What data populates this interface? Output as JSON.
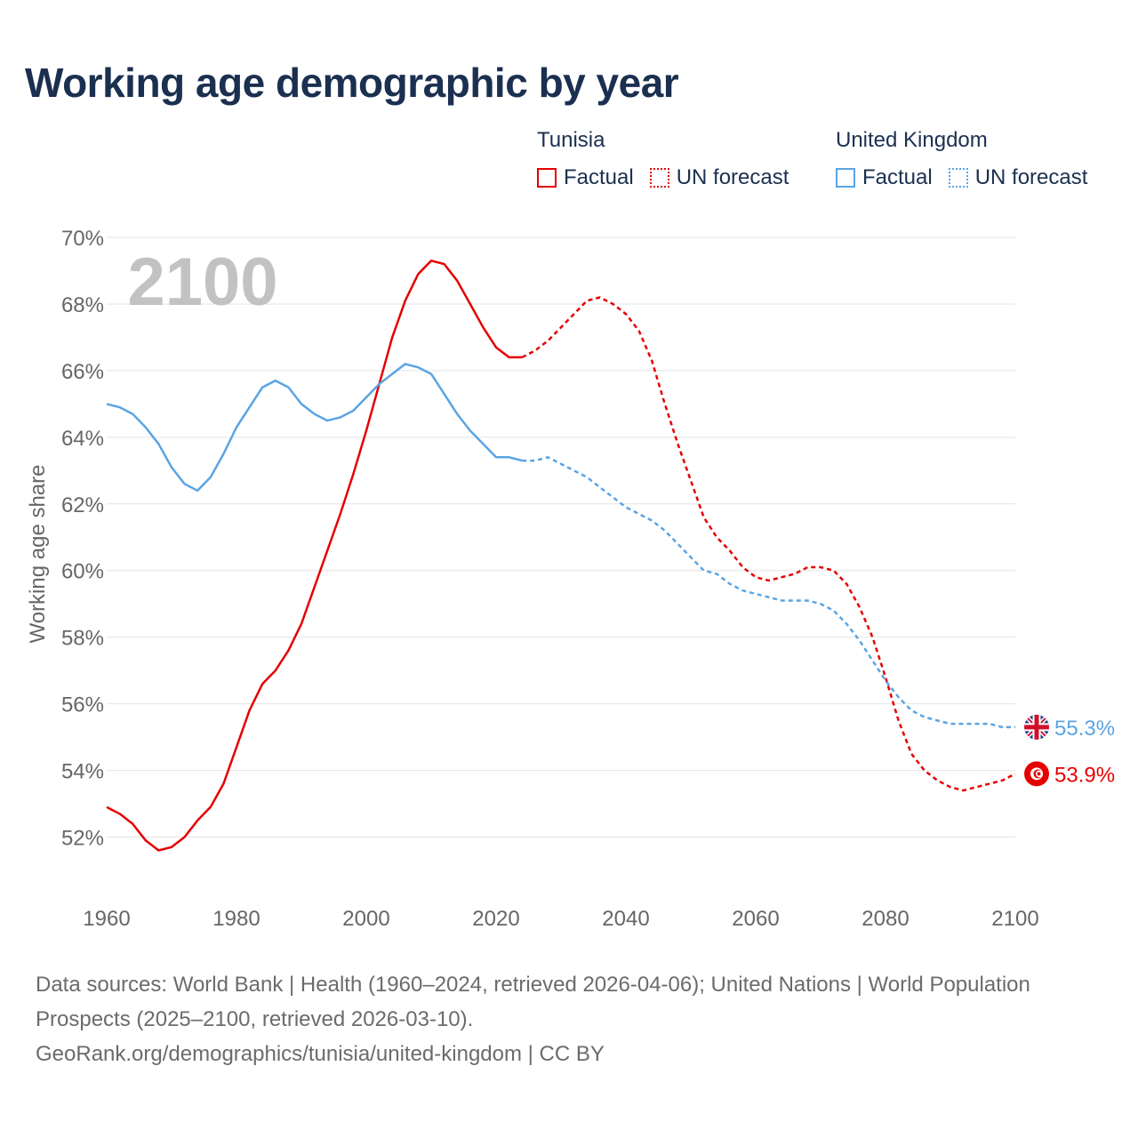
{
  "title": "Working age demographic by year",
  "legend": [
    {
      "country": "Tunisia",
      "color": "#e60000",
      "factual_label": "Factual",
      "forecast_label": "UN forecast"
    },
    {
      "country": "United Kingdom",
      "color": "#5aa4e4",
      "factual_label": "Factual",
      "forecast_label": "UN forecast"
    }
  ],
  "year_watermark": "2100",
  "footer": {
    "sources": "Data sources: World Bank | Health (1960–2024, retrieved 2026-04-06); United Nations | World Population Prospects (2025–2100, retrieved 2026-03-10).",
    "attribution": "GeoRank.org/demographics/tunisia/united-kingdom | CC BY"
  },
  "chart_data": {
    "type": "line",
    "title": "Working age demographic by year",
    "xlabel": "",
    "ylabel": "Working age share",
    "xlim": [
      1960,
      2100
    ],
    "ylim": [
      50.2,
      70
    ],
    "x_ticks": [
      "1960",
      "1980",
      "2000",
      "2020",
      "2040",
      "2060",
      "2080",
      "2100"
    ],
    "y_ticks": [
      "52%",
      "54%",
      "56%",
      "58%",
      "60%",
      "62%",
      "64%",
      "66%",
      "68%",
      "70%"
    ],
    "grid": true,
    "forecast_start": 2024,
    "series": [
      {
        "name": "Tunisia",
        "color": "#e60000",
        "end_label": "53.9%",
        "points": [
          [
            1960,
            52.9
          ],
          [
            1962,
            52.7
          ],
          [
            1964,
            52.4
          ],
          [
            1966,
            51.9
          ],
          [
            1968,
            51.6
          ],
          [
            1970,
            51.7
          ],
          [
            1972,
            52.0
          ],
          [
            1974,
            52.5
          ],
          [
            1976,
            52.9
          ],
          [
            1978,
            53.6
          ],
          [
            1980,
            54.7
          ],
          [
            1982,
            55.8
          ],
          [
            1984,
            56.6
          ],
          [
            1986,
            57.0
          ],
          [
            1988,
            57.6
          ],
          [
            1990,
            58.4
          ],
          [
            1992,
            59.5
          ],
          [
            1994,
            60.6
          ],
          [
            1996,
            61.7
          ],
          [
            1998,
            62.9
          ],
          [
            2000,
            64.2
          ],
          [
            2002,
            65.6
          ],
          [
            2004,
            67.0
          ],
          [
            2006,
            68.1
          ],
          [
            2008,
            68.9
          ],
          [
            2010,
            69.3
          ],
          [
            2012,
            69.2
          ],
          [
            2014,
            68.7
          ],
          [
            2016,
            68.0
          ],
          [
            2018,
            67.3
          ],
          [
            2020,
            66.7
          ],
          [
            2022,
            66.4
          ],
          [
            2024,
            66.4
          ],
          [
            2026,
            66.6
          ],
          [
            2028,
            66.9
          ],
          [
            2030,
            67.3
          ],
          [
            2032,
            67.7
          ],
          [
            2034,
            68.1
          ],
          [
            2036,
            68.2
          ],
          [
            2038,
            68.0
          ],
          [
            2040,
            67.7
          ],
          [
            2042,
            67.2
          ],
          [
            2044,
            66.3
          ],
          [
            2046,
            65.0
          ],
          [
            2048,
            63.8
          ],
          [
            2050,
            62.7
          ],
          [
            2052,
            61.6
          ],
          [
            2054,
            61.0
          ],
          [
            2056,
            60.6
          ],
          [
            2058,
            60.1
          ],
          [
            2060,
            59.8
          ],
          [
            2062,
            59.7
          ],
          [
            2064,
            59.8
          ],
          [
            2066,
            59.9
          ],
          [
            2068,
            60.1
          ],
          [
            2070,
            60.1
          ],
          [
            2072,
            60.0
          ],
          [
            2074,
            59.6
          ],
          [
            2076,
            58.9
          ],
          [
            2078,
            58.0
          ],
          [
            2080,
            56.8
          ],
          [
            2082,
            55.5
          ],
          [
            2084,
            54.5
          ],
          [
            2086,
            54.0
          ],
          [
            2088,
            53.7
          ],
          [
            2090,
            53.5
          ],
          [
            2092,
            53.4
          ],
          [
            2094,
            53.5
          ],
          [
            2096,
            53.6
          ],
          [
            2098,
            53.7
          ],
          [
            2100,
            53.9
          ]
        ]
      },
      {
        "name": "United Kingdom",
        "color": "#5aa4e4",
        "end_label": "55.3%",
        "points": [
          [
            1960,
            65.0
          ],
          [
            1962,
            64.9
          ],
          [
            1964,
            64.7
          ],
          [
            1966,
            64.3
          ],
          [
            1968,
            63.8
          ],
          [
            1970,
            63.1
          ],
          [
            1972,
            62.6
          ],
          [
            1974,
            62.4
          ],
          [
            1976,
            62.8
          ],
          [
            1978,
            63.5
          ],
          [
            1980,
            64.3
          ],
          [
            1982,
            64.9
          ],
          [
            1984,
            65.5
          ],
          [
            1986,
            65.7
          ],
          [
            1988,
            65.5
          ],
          [
            1990,
            65.0
          ],
          [
            1992,
            64.7
          ],
          [
            1994,
            64.5
          ],
          [
            1996,
            64.6
          ],
          [
            1998,
            64.8
          ],
          [
            2000,
            65.2
          ],
          [
            2002,
            65.6
          ],
          [
            2004,
            65.9
          ],
          [
            2006,
            66.2
          ],
          [
            2008,
            66.1
          ],
          [
            2010,
            65.9
          ],
          [
            2012,
            65.3
          ],
          [
            2014,
            64.7
          ],
          [
            2016,
            64.2
          ],
          [
            2018,
            63.8
          ],
          [
            2020,
            63.4
          ],
          [
            2022,
            63.4
          ],
          [
            2024,
            63.3
          ],
          [
            2026,
            63.3
          ],
          [
            2028,
            63.4
          ],
          [
            2030,
            63.2
          ],
          [
            2032,
            63.0
          ],
          [
            2034,
            62.8
          ],
          [
            2036,
            62.5
          ],
          [
            2038,
            62.2
          ],
          [
            2040,
            61.9
          ],
          [
            2042,
            61.7
          ],
          [
            2044,
            61.5
          ],
          [
            2046,
            61.2
          ],
          [
            2048,
            60.8
          ],
          [
            2050,
            60.4
          ],
          [
            2052,
            60.0
          ],
          [
            2054,
            59.9
          ],
          [
            2056,
            59.6
          ],
          [
            2058,
            59.4
          ],
          [
            2060,
            59.3
          ],
          [
            2062,
            59.2
          ],
          [
            2064,
            59.1
          ],
          [
            2066,
            59.1
          ],
          [
            2068,
            59.1
          ],
          [
            2070,
            59.0
          ],
          [
            2072,
            58.8
          ],
          [
            2074,
            58.4
          ],
          [
            2076,
            57.9
          ],
          [
            2078,
            57.3
          ],
          [
            2080,
            56.7
          ],
          [
            2082,
            56.2
          ],
          [
            2084,
            55.8
          ],
          [
            2086,
            55.6
          ],
          [
            2088,
            55.5
          ],
          [
            2090,
            55.4
          ],
          [
            2092,
            55.4
          ],
          [
            2094,
            55.4
          ],
          [
            2096,
            55.4
          ],
          [
            2098,
            55.3
          ],
          [
            2100,
            55.3
          ]
        ]
      }
    ]
  }
}
